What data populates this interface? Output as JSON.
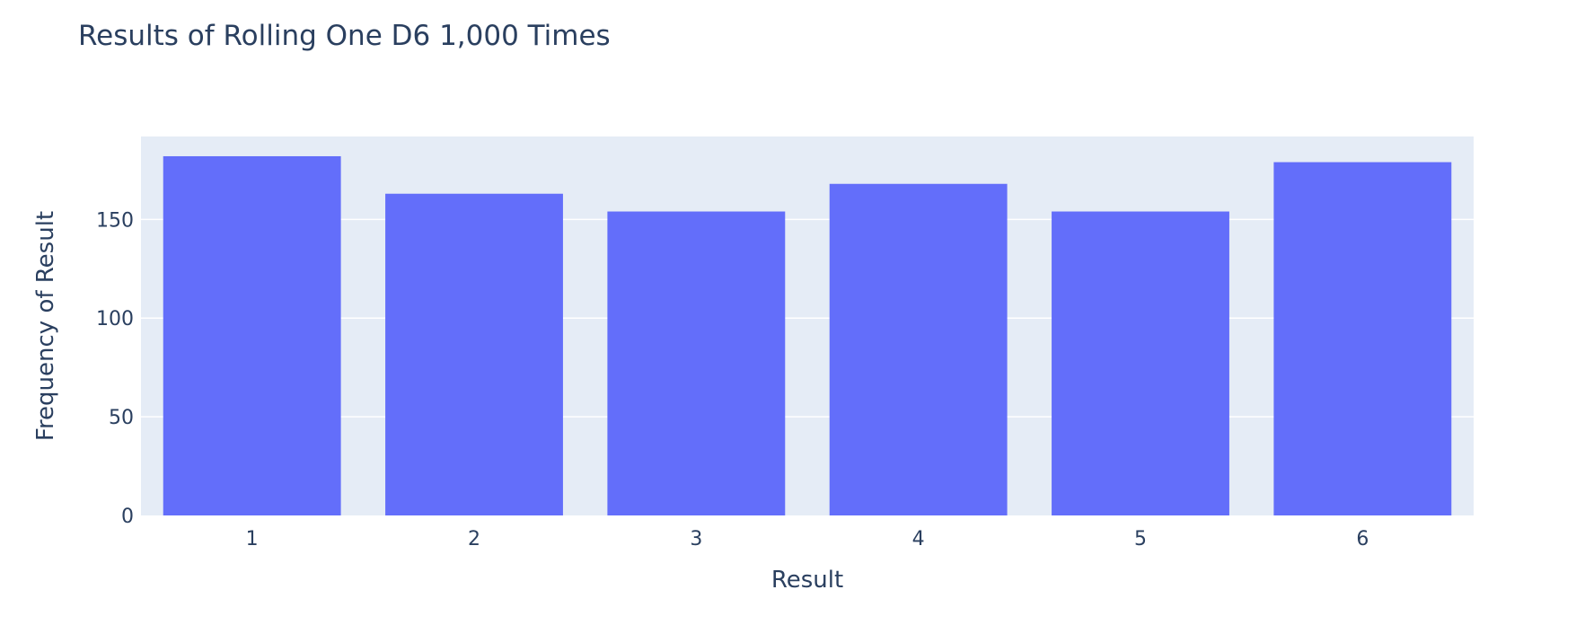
{
  "chart_data": {
    "type": "bar",
    "title": "Results of Rolling One D6 1,000 Times",
    "xlabel": "Result",
    "ylabel": "Frequency of Result",
    "categories": [
      "1",
      "2",
      "3",
      "4",
      "5",
      "6"
    ],
    "values": [
      182,
      163,
      154,
      168,
      154,
      179
    ],
    "ylim": [
      0,
      192
    ],
    "yticks": [
      0,
      50,
      100,
      150
    ],
    "grid": true,
    "legend": "none",
    "colors": {
      "bar": "#636efa",
      "plot_bg": "#e5ecf6",
      "grid": "#ffffff",
      "text": "#2a3f5f"
    }
  }
}
